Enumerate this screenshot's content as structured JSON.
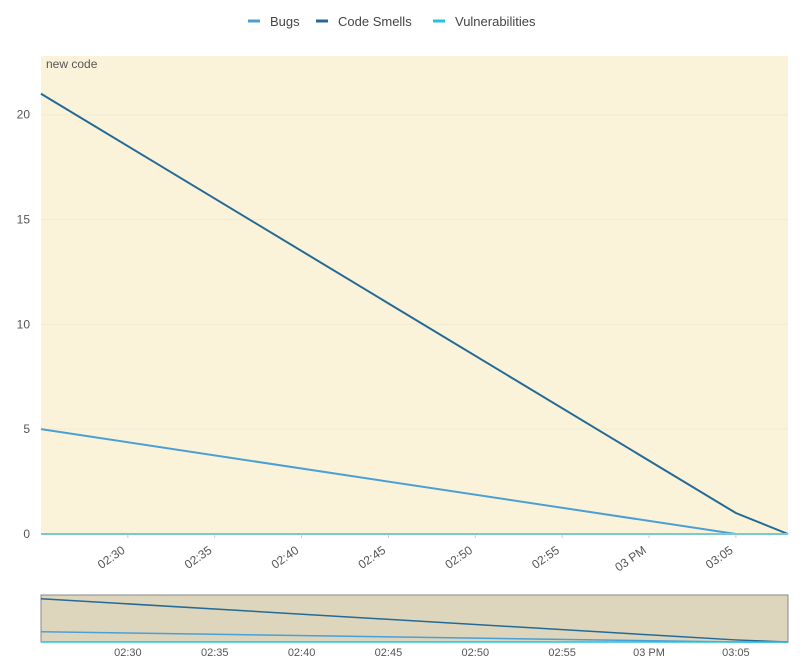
{
  "chart_data": {
    "type": "line",
    "annotation": "new code",
    "x": [
      "02:25",
      "03:05",
      "03:08"
    ],
    "xlim": [
      "02:25",
      "03:08"
    ],
    "xticks": [
      "02:30",
      "02:35",
      "02:40",
      "02:45",
      "02:50",
      "02:55",
      {
        "value": "03:00",
        "label": "03 PM"
      },
      "03:05"
    ],
    "ylim": [
      0,
      22.8
    ],
    "yticks": [
      0,
      5,
      10,
      15,
      20
    ],
    "grid": true,
    "legend": "top",
    "series": [
      {
        "name": "Bugs",
        "color": "#4b9fd5",
        "values": [
          5,
          0,
          0
        ]
      },
      {
        "name": "Code Smells",
        "color": "#236a97",
        "values": [
          21,
          1,
          0
        ]
      },
      {
        "name": "Vulnerabilities",
        "color": "#24c3e0",
        "values": [
          0,
          0,
          0
        ]
      }
    ]
  }
}
